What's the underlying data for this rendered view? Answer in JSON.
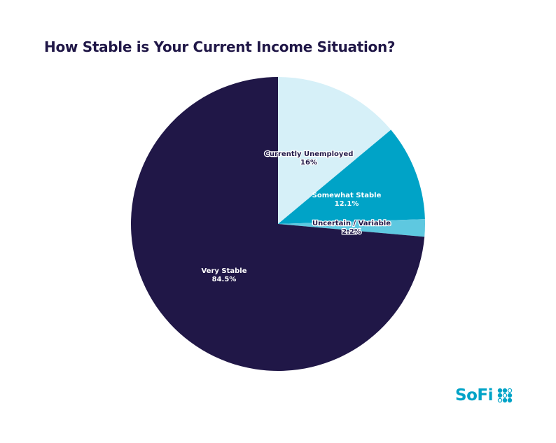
{
  "title": "How Stable is Your Current Income Situation?",
  "colors": {
    "title": "#201747",
    "currently_unemployed": "#d6f0f8",
    "somewhat_stable": "#00a3c7",
    "uncertain_variable": "#5ec8e0",
    "very_stable": "#201747",
    "logo": "#00a3c7"
  },
  "labels": {
    "currently_unemployed": {
      "name": "Currently Unemployed",
      "value": "16%"
    },
    "somewhat_stable": {
      "name": "Somewhat Stable",
      "value": "12.1%"
    },
    "uncertain_variable": {
      "name": "Uncertain / Variable",
      "value": "2.2%"
    },
    "very_stable": {
      "name": "Very Stable",
      "value": "84.5%"
    }
  },
  "logo": {
    "text": "SoFi"
  },
  "chart_data": {
    "type": "pie",
    "title": "How Stable is Your Current Income Situation?",
    "categories": [
      "Currently Unemployed",
      "Somewhat Stable",
      "Uncertain / Variable",
      "Very Stable"
    ],
    "values": [
      16,
      12.1,
      2.2,
      84.5
    ],
    "value_labels": [
      "16%",
      "12.1%",
      "2.2%",
      "84.5%"
    ],
    "start_angle": "12 o'clock, clockwise",
    "legend": "none (inline labels)"
  }
}
